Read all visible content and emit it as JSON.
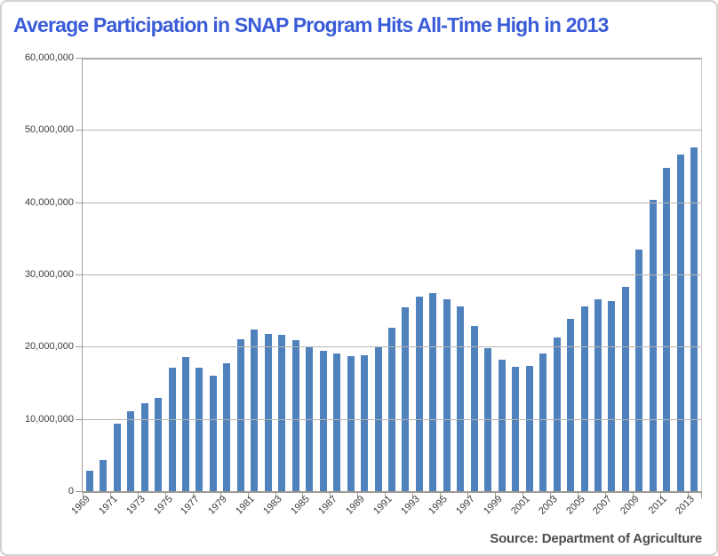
{
  "header": {
    "title": "Average Participation in SNAP Program Hits All-Time High in 2013"
  },
  "footer": {
    "source": "Source: Department of Agriculture"
  },
  "colors": {
    "title": "#3a5cd8",
    "bar": "#4f81bd",
    "gridline": "#b8b4af",
    "axis": "#9e9a95",
    "tick_label": "#3c3c3c",
    "source_text": "#4d4d4d",
    "card_border": "#d2d0cd",
    "background": "#ffffff"
  },
  "chart_data": {
    "type": "bar",
    "title": "Average Participation in SNAP Program Hits All-Time High in 2013",
    "xlabel": "",
    "ylabel": "",
    "x": [
      1969,
      1970,
      1971,
      1972,
      1973,
      1974,
      1975,
      1976,
      1977,
      1978,
      1979,
      1980,
      1981,
      1982,
      1983,
      1984,
      1985,
      1986,
      1987,
      1988,
      1989,
      1990,
      1991,
      1992,
      1993,
      1994,
      1995,
      1996,
      1997,
      1998,
      1999,
      2000,
      2001,
      2002,
      2003,
      2004,
      2005,
      2006,
      2007,
      2008,
      2009,
      2010,
      2011,
      2012,
      2013
    ],
    "values": [
      2878000,
      4340000,
      9368000,
      11109000,
      12166000,
      12862000,
      17064000,
      18549000,
      17077000,
      16001000,
      17653000,
      21082000,
      22430000,
      21717000,
      21625000,
      20854000,
      19899000,
      19429000,
      19113000,
      18645000,
      18806000,
      20049000,
      22625000,
      25407000,
      26987000,
      27474000,
      26619000,
      25543000,
      22858000,
      19791000,
      18183000,
      17194000,
      17318000,
      19096000,
      21250000,
      23811000,
      25628000,
      26549000,
      26316000,
      28223000,
      33490000,
      40302000,
      44709000,
      46609000,
      47636000
    ],
    "ylim": [
      0,
      60000000
    ],
    "y_tick_interval": 10000000,
    "y_tick_labels": [
      "0",
      "10,000,000",
      "20,000,000",
      "30,000,000",
      "40,000,000",
      "50,000,000",
      "60,000,000"
    ],
    "x_tick_labels": [
      "1969",
      "1971",
      "1973",
      "1975",
      "1977",
      "1979",
      "1981",
      "1983",
      "1985",
      "1987",
      "1989",
      "1991",
      "1993",
      "1995",
      "1997",
      "1999",
      "2001",
      "2003",
      "2005",
      "2007",
      "2009",
      "2011",
      "2013"
    ],
    "grid": "horizontal",
    "legend": "none"
  }
}
